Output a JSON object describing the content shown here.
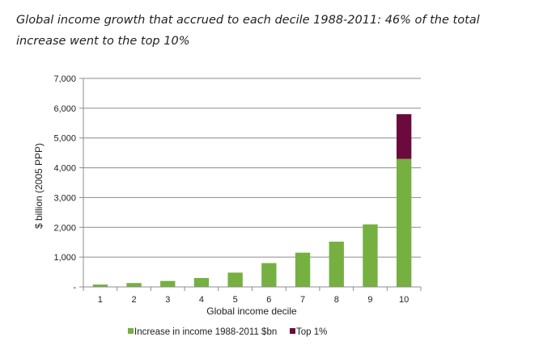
{
  "chart_data": {
    "type": "bar",
    "stacked": true,
    "title": "Global income growth that accrued to each decile 1988-2011: 46% of the total increase went to the top 10%",
    "xlabel": "Global income decile",
    "ylabel": "$ billion (2005 PPP)",
    "ylim": [
      0,
      7000
    ],
    "yticks": [
      0,
      1000,
      2000,
      3000,
      4000,
      5000,
      6000,
      7000
    ],
    "ytick_labels": [
      "-",
      "1,000",
      "2,000",
      "3,000",
      "4,000",
      "5,000",
      "6,000",
      "7,000"
    ],
    "categories": [
      "1",
      "2",
      "3",
      "4",
      "5",
      "6",
      "7",
      "8",
      "9",
      "10"
    ],
    "grid": true,
    "legend_position": "bottom",
    "series": [
      {
        "name": "Increase in income 1988-2011 $bn",
        "color": "#76b041",
        "values": [
          80,
          130,
          200,
          300,
          480,
          800,
          1150,
          1520,
          2100,
          4300
        ]
      },
      {
        "name": "Top 1%",
        "color": "#6b0a3c",
        "values": [
          0,
          0,
          0,
          0,
          0,
          0,
          0,
          0,
          0,
          1500
        ]
      }
    ]
  }
}
